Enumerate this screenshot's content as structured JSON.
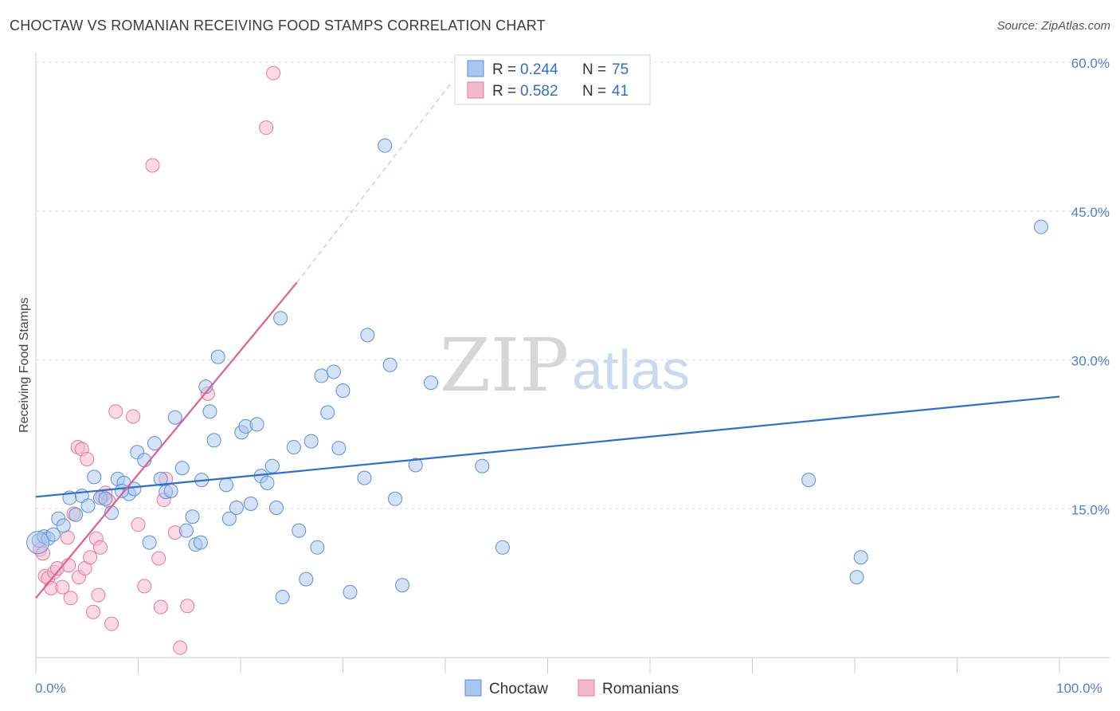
{
  "title": "CHOCTAW VS ROMANIAN RECEIVING FOOD STAMPS CORRELATION CHART",
  "source": "Source: ZipAtlas.com",
  "watermark": {
    "zip": "ZIP",
    "atlas": "atlas"
  },
  "legend": {
    "rows": [
      {
        "r_label": "R =",
        "r_value": "0.244",
        "n_label": "N =",
        "n_value": "75"
      },
      {
        "r_label": "R =",
        "r_value": "0.582",
        "n_label": "N =",
        "n_value": "41"
      }
    ],
    "bottom": [
      "Choctaw",
      "Romanians"
    ]
  },
  "colors": {
    "choctaw_fill": "#a9c6ee",
    "choctaw_stroke": "#5b8fd6",
    "choctaw_line": "#2b6fd2",
    "romanian_fill": "#f5b9cc",
    "romanian_stroke": "#e27a9e",
    "romanian_line": "#e0608e",
    "tick_label": "#4a7fd4",
    "grid": "#dddddd"
  },
  "chart_data": {
    "type": "scatter",
    "title": "CHOCTAW VS ROMANIAN RECEIVING FOOD STAMPS CORRELATION CHART",
    "xlabel": "",
    "ylabel": "Receiving Food Stamps",
    "xlim": [
      0,
      100
    ],
    "ylim": [
      0,
      60
    ],
    "x_tick_labels": [
      "0.0%",
      "100.0%"
    ],
    "y_ticks": [
      15,
      30,
      45,
      60
    ],
    "y_tick_labels": [
      "15.0%",
      "30.0%",
      "45.0%",
      "60.0%"
    ],
    "series": [
      {
        "name": "Choctaw",
        "R": 0.244,
        "N": 75,
        "trend": {
          "x": [
            0,
            100
          ],
          "y": [
            16.2,
            26.3
          ]
        },
        "points": [
          [
            0.3,
            11.8
          ],
          [
            0.8,
            12.2
          ],
          [
            1.2,
            12.0
          ],
          [
            1.7,
            12.4
          ],
          [
            2.2,
            14.0
          ],
          [
            2.7,
            13.3
          ],
          [
            3.3,
            16.1
          ],
          [
            3.9,
            14.4
          ],
          [
            4.5,
            16.3
          ],
          [
            5.1,
            15.3
          ],
          [
            5.7,
            18.2
          ],
          [
            6.3,
            16.1
          ],
          [
            6.8,
            16.0
          ],
          [
            7.4,
            14.6
          ],
          [
            8.0,
            18.0
          ],
          [
            8.6,
            17.6
          ],
          [
            9.1,
            16.5
          ],
          [
            9.6,
            17.0
          ],
          [
            9.9,
            20.7
          ],
          [
            10.6,
            19.9
          ],
          [
            11.1,
            11.6
          ],
          [
            11.6,
            21.6
          ],
          [
            12.2,
            18.0
          ],
          [
            12.7,
            16.7
          ],
          [
            13.2,
            16.8
          ],
          [
            13.6,
            24.2
          ],
          [
            14.3,
            19.1
          ],
          [
            14.7,
            12.8
          ],
          [
            15.3,
            14.2
          ],
          [
            15.6,
            11.4
          ],
          [
            16.1,
            11.6
          ],
          [
            16.6,
            27.3
          ],
          [
            17.0,
            24.8
          ],
          [
            17.4,
            21.9
          ],
          [
            17.8,
            30.3
          ],
          [
            18.6,
            17.4
          ],
          [
            18.9,
            14.0
          ],
          [
            19.6,
            15.1
          ],
          [
            20.1,
            22.7
          ],
          [
            20.5,
            23.3
          ],
          [
            21.0,
            15.5
          ],
          [
            21.6,
            23.5
          ],
          [
            22.0,
            18.3
          ],
          [
            22.6,
            17.6
          ],
          [
            23.1,
            19.3
          ],
          [
            23.5,
            15.1
          ],
          [
            23.9,
            34.2
          ],
          [
            24.1,
            6.1
          ],
          [
            25.2,
            21.2
          ],
          [
            25.7,
            12.8
          ],
          [
            26.4,
            7.9
          ],
          [
            26.9,
            21.8
          ],
          [
            27.5,
            11.1
          ],
          [
            27.9,
            28.4
          ],
          [
            28.5,
            24.7
          ],
          [
            29.1,
            28.8
          ],
          [
            29.6,
            21.1
          ],
          [
            30.0,
            26.9
          ],
          [
            30.7,
            6.6
          ],
          [
            32.1,
            18.1
          ],
          [
            32.4,
            32.5
          ],
          [
            34.1,
            51.6
          ],
          [
            34.6,
            29.5
          ],
          [
            35.1,
            16.0
          ],
          [
            35.8,
            7.3
          ],
          [
            37.1,
            19.4
          ],
          [
            38.6,
            27.7
          ],
          [
            43.6,
            19.3
          ],
          [
            45.6,
            11.1
          ],
          [
            75.5,
            17.9
          ],
          [
            80.2,
            8.1
          ],
          [
            80.6,
            10.1
          ],
          [
            98.2,
            43.4
          ],
          [
            16.2,
            17.9
          ],
          [
            8.4,
            16.8
          ]
        ]
      },
      {
        "name": "Romanians",
        "R": 0.582,
        "N": 41,
        "trend": {
          "x": [
            0,
            25.5
          ],
          "y": [
            6.0,
            37.8
          ]
        },
        "trend_dashed": {
          "x": [
            25.5,
            40.5
          ],
          "y": [
            37.8,
            57.8
          ]
        },
        "points": [
          [
            0.4,
            10.9
          ],
          [
            0.7,
            10.5
          ],
          [
            0.9,
            8.2
          ],
          [
            1.2,
            8.0
          ],
          [
            1.5,
            7.0
          ],
          [
            1.8,
            8.6
          ],
          [
            2.1,
            9.0
          ],
          [
            2.6,
            7.1
          ],
          [
            3.1,
            12.1
          ],
          [
            3.4,
            6.0
          ],
          [
            3.7,
            14.5
          ],
          [
            4.1,
            21.2
          ],
          [
            4.2,
            8.1
          ],
          [
            4.5,
            21.0
          ],
          [
            4.8,
            9.0
          ],
          [
            5.0,
            20.0
          ],
          [
            5.3,
            10.1
          ],
          [
            5.6,
            4.6
          ],
          [
            5.9,
            12.0
          ],
          [
            6.1,
            6.3
          ],
          [
            6.3,
            11.1
          ],
          [
            6.5,
            16.2
          ],
          [
            6.8,
            16.6
          ],
          [
            7.1,
            15.8
          ],
          [
            7.4,
            3.4
          ],
          [
            7.8,
            24.8
          ],
          [
            9.5,
            24.3
          ],
          [
            10.0,
            13.4
          ],
          [
            10.6,
            7.2
          ],
          [
            11.4,
            49.6
          ],
          [
            12.0,
            10.0
          ],
          [
            12.2,
            5.1
          ],
          [
            12.5,
            15.9
          ],
          [
            12.7,
            18.0
          ],
          [
            13.6,
            12.6
          ],
          [
            14.1,
            1.0
          ],
          [
            14.8,
            5.2
          ],
          [
            16.8,
            26.6
          ],
          [
            22.5,
            53.4
          ],
          [
            23.2,
            58.9
          ],
          [
            3.2,
            9.3
          ]
        ]
      }
    ]
  }
}
